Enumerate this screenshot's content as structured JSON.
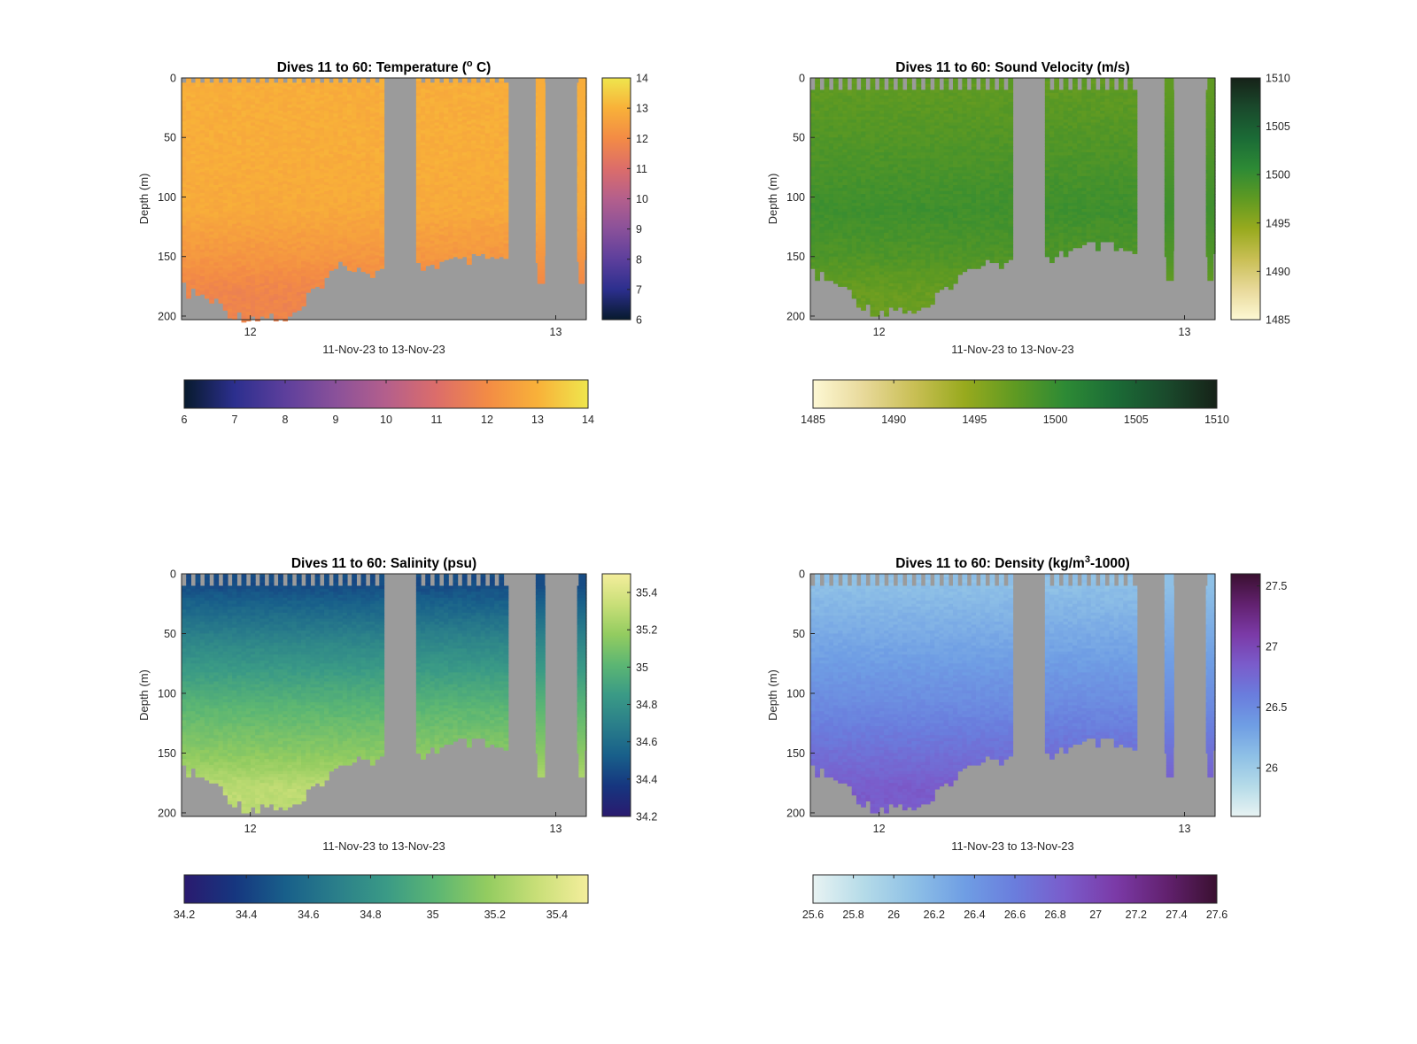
{
  "figure": {
    "background": "#ffffff",
    "mask_color": "#9b9b9b",
    "axis_color": "#262626"
  },
  "chart_data": [
    {
      "type": "heatmap",
      "variable": "temperature",
      "title": "Dives 11 to 60: Temperature (",
      "title_sup": "o",
      "title_end": " C)",
      "xlabel": "11-Nov-23 to 13-Nov-23",
      "ylabel": "Depth (m)",
      "x_ticks": [
        "12",
        "13"
      ],
      "x_tick_values": [
        12,
        13
      ],
      "xlim": [
        11.775,
        13.1
      ],
      "y_ticks": [
        "0",
        "50",
        "100",
        "150",
        "200"
      ],
      "y_tick_values": [
        0,
        50,
        100,
        150,
        200
      ],
      "ylim": [
        0,
        203
      ],
      "y_reversed": true,
      "colormap": [
        "#071a2d",
        "#2c2f8e",
        "#5d3f9c",
        "#8a519a",
        "#b45f8c",
        "#dc6d6a",
        "#f38b45",
        "#f8b139",
        "#efe64d"
      ],
      "clim": [
        6,
        14
      ],
      "colorbar_ticks": [
        "6",
        "7",
        "8",
        "9",
        "10",
        "11",
        "12",
        "13",
        "14"
      ],
      "colorbar_tick_values": [
        6,
        7,
        8,
        9,
        10,
        11,
        12,
        13,
        14
      ],
      "horizontal_colorbar_ticks": [
        "6",
        "7",
        "8",
        "9",
        "10",
        "11",
        "12",
        "13",
        "14"
      ],
      "horizontal_colorbar_tick_values": [
        6,
        7,
        8,
        9,
        10,
        11,
        12,
        13,
        14
      ],
      "profile_gaps": [
        [
          12.44,
          12.55
        ],
        [
          12.84,
          12.94
        ],
        [
          12.965,
          13.075
        ]
      ],
      "extra_profiles": [
        [
          12.94,
          12.965,
          172
        ],
        [
          13.075,
          13.095,
          172
        ]
      ],
      "surface_gap_depth": 4,
      "bottom_depth_profile": [
        [
          11.775,
          172
        ],
        [
          11.8,
          180
        ],
        [
          11.85,
          182
        ],
        [
          11.9,
          190
        ],
        [
          11.95,
          198
        ],
        [
          12.0,
          200
        ],
        [
          12.05,
          198
        ],
        [
          12.1,
          200
        ],
        [
          12.15,
          200
        ],
        [
          12.2,
          180
        ],
        [
          12.25,
          165
        ],
        [
          12.3,
          155
        ],
        [
          12.35,
          158
        ],
        [
          12.4,
          162
        ],
        [
          12.44,
          160
        ],
        [
          12.55,
          157
        ],
        [
          12.6,
          155
        ],
        [
          12.7,
          152
        ],
        [
          12.78,
          150
        ],
        [
          12.835,
          152
        ]
      ],
      "depth_values": [
        10,
        60,
        110,
        150,
        180
      ],
      "depth_value_colors": [
        12.9,
        12.9,
        12.8,
        12.3,
        11.8
      ]
    },
    {
      "type": "heatmap",
      "variable": "sound_velocity",
      "title": "Dives 11 to 60: Sound Velocity (m/s)",
      "xlabel": "11-Nov-23 to 13-Nov-23",
      "ylabel": "Depth (m)",
      "x_ticks": [
        "12",
        "13"
      ],
      "x_tick_values": [
        12,
        13
      ],
      "xlim": [
        11.775,
        13.1
      ],
      "y_ticks": [
        "0",
        "50",
        "100",
        "150",
        "200"
      ],
      "y_tick_values": [
        0,
        50,
        100,
        150,
        200
      ],
      "ylim": [
        0,
        203
      ],
      "y_reversed": true,
      "colormap": [
        "#fdf8d4",
        "#e8d99a",
        "#c9bf55",
        "#98aa1e",
        "#5f9a22",
        "#2d8a35",
        "#1b6b36",
        "#1a4a2c",
        "#162218"
      ],
      "clim": [
        1485,
        1510
      ],
      "colorbar_ticks": [
        "1485",
        "1490",
        "1495",
        "1500",
        "1505",
        "1510"
      ],
      "colorbar_tick_values": [
        1485,
        1490,
        1495,
        1500,
        1505,
        1510
      ],
      "horizontal_colorbar_ticks": [
        "1485",
        "1490",
        "1495",
        "1500",
        "1505",
        "1510"
      ],
      "horizontal_colorbar_tick_values": [
        1485,
        1490,
        1495,
        1500,
        1505,
        1510
      ],
      "profile_gaps": [
        [
          12.44,
          12.55
        ],
        [
          12.84,
          12.94
        ],
        [
          12.965,
          13.075
        ]
      ],
      "extra_profiles": [
        [
          12.94,
          12.965,
          168
        ],
        [
          13.075,
          13.095,
          170
        ]
      ],
      "surface_gap_depth": 10,
      "bottom_depth_profile": [
        [
          11.775,
          162
        ],
        [
          11.85,
          170
        ],
        [
          11.9,
          178
        ],
        [
          11.95,
          190
        ],
        [
          12.0,
          196
        ],
        [
          12.05,
          192
        ],
        [
          12.1,
          194
        ],
        [
          12.15,
          196
        ],
        [
          12.2,
          180
        ],
        [
          12.25,
          168
        ],
        [
          12.3,
          160
        ],
        [
          12.35,
          150
        ],
        [
          12.4,
          155
        ],
        [
          12.44,
          155
        ],
        [
          12.55,
          152
        ],
        [
          12.6,
          145
        ],
        [
          12.7,
          140
        ],
        [
          12.78,
          142
        ],
        [
          12.835,
          148
        ]
      ],
      "depth_values": [
        10,
        60,
        110,
        150,
        180
      ],
      "depth_value_colors": [
        1497.5,
        1498.5,
        1499.5,
        1498.5,
        1497.0
      ]
    },
    {
      "type": "heatmap",
      "variable": "salinity",
      "title": "Dives 11 to 60: Salinity (psu)",
      "xlabel": "11-Nov-23 to 13-Nov-23",
      "ylabel": "Depth (m)",
      "x_ticks": [
        "12",
        "13"
      ],
      "x_tick_values": [
        12,
        13
      ],
      "xlim": [
        11.775,
        13.1
      ],
      "y_ticks": [
        "0",
        "50",
        "100",
        "150",
        "200"
      ],
      "y_tick_values": [
        0,
        50,
        100,
        150,
        200
      ],
      "ylim": [
        0,
        203
      ],
      "y_reversed": true,
      "colormap": [
        "#2a1a6f",
        "#16367f",
        "#185f8a",
        "#2a7e8a",
        "#3a9a86",
        "#5cb673",
        "#93cc60",
        "#c9df78",
        "#f4ee9c"
      ],
      "clim": [
        34.2,
        35.5
      ],
      "colorbar_ticks": [
        "34.2",
        "34.4",
        "34.6",
        "34.8",
        "35",
        "35.2",
        "35.4"
      ],
      "colorbar_tick_values": [
        34.2,
        34.4,
        34.6,
        34.8,
        35.0,
        35.2,
        35.4
      ],
      "horizontal_colorbar_ticks": [
        "34.2",
        "34.4",
        "34.6",
        "34.8",
        "35",
        "35.2",
        "35.4"
      ],
      "horizontal_colorbar_tick_values": [
        34.2,
        34.4,
        34.6,
        34.8,
        35.0,
        35.2,
        35.4
      ],
      "profile_gaps": [
        [
          12.44,
          12.55
        ],
        [
          12.84,
          12.94
        ],
        [
          12.965,
          13.075
        ]
      ],
      "extra_profiles": [
        [
          12.94,
          12.965,
          168
        ],
        [
          13.075,
          13.095,
          170
        ]
      ],
      "surface_gap_depth": 10,
      "bottom_depth_profile": [
        [
          11.775,
          162
        ],
        [
          11.85,
          170
        ],
        [
          11.9,
          178
        ],
        [
          11.95,
          190
        ],
        [
          12.0,
          196
        ],
        [
          12.05,
          192
        ],
        [
          12.1,
          194
        ],
        [
          12.15,
          196
        ],
        [
          12.2,
          180
        ],
        [
          12.25,
          168
        ],
        [
          12.3,
          160
        ],
        [
          12.35,
          150
        ],
        [
          12.4,
          155
        ],
        [
          12.44,
          155
        ],
        [
          12.55,
          152
        ],
        [
          12.6,
          145
        ],
        [
          12.7,
          140
        ],
        [
          12.78,
          142
        ],
        [
          12.835,
          148
        ]
      ],
      "depth_values": [
        10,
        60,
        110,
        150,
        180
      ],
      "depth_value_colors": [
        34.45,
        34.75,
        35.0,
        35.15,
        35.3
      ]
    },
    {
      "type": "heatmap",
      "variable": "density",
      "title": "Dives 11 to 60: Density (kg/m",
      "title_sup": "3",
      "title_end": "-1000)",
      "xlabel": "11-Nov-23 to 13-Nov-23",
      "ylabel": "Depth (m)",
      "x_ticks": [
        "12",
        "13"
      ],
      "x_tick_values": [
        12,
        13
      ],
      "xlim": [
        11.775,
        13.1
      ],
      "y_ticks": [
        "0",
        "50",
        "100",
        "150",
        "200"
      ],
      "y_tick_values": [
        0,
        50,
        100,
        150,
        200
      ],
      "ylim": [
        0,
        203
      ],
      "y_reversed": true,
      "colormap": [
        "#e8f3f3",
        "#b5dbe8",
        "#8ec0e6",
        "#6f9ee4",
        "#6a7ddd",
        "#7a5ccb",
        "#7b3aa7",
        "#62216f",
        "#3a1030"
      ],
      "clim": [
        25.6,
        27.6
      ],
      "colorbar_ticks": [
        "26",
        "26.5",
        "27",
        "27.5"
      ],
      "colorbar_tick_values": [
        26.0,
        26.5,
        27.0,
        27.5
      ],
      "horizontal_colorbar_ticks": [
        "25.6",
        "25.8",
        "26",
        "26.2",
        "26.4",
        "26.6",
        "26.8",
        "27",
        "27.2",
        "27.4",
        "27.6"
      ],
      "horizontal_colorbar_tick_values": [
        25.6,
        25.8,
        26.0,
        26.2,
        26.4,
        26.6,
        26.8,
        27.0,
        27.2,
        27.4,
        27.6
      ],
      "profile_gaps": [
        [
          12.44,
          12.55
        ],
        [
          12.84,
          12.94
        ],
        [
          12.965,
          13.075
        ]
      ],
      "extra_profiles": [
        [
          12.94,
          12.965,
          168
        ],
        [
          13.075,
          13.095,
          170
        ]
      ],
      "surface_gap_depth": 10,
      "bottom_depth_profile": [
        [
          11.775,
          162
        ],
        [
          11.85,
          170
        ],
        [
          11.9,
          178
        ],
        [
          11.95,
          190
        ],
        [
          12.0,
          196
        ],
        [
          12.05,
          192
        ],
        [
          12.1,
          194
        ],
        [
          12.15,
          196
        ],
        [
          12.2,
          180
        ],
        [
          12.25,
          168
        ],
        [
          12.3,
          160
        ],
        [
          12.35,
          150
        ],
        [
          12.4,
          155
        ],
        [
          12.44,
          155
        ],
        [
          12.55,
          152
        ],
        [
          12.6,
          145
        ],
        [
          12.7,
          140
        ],
        [
          12.78,
          142
        ],
        [
          12.835,
          148
        ]
      ],
      "depth_values": [
        10,
        60,
        110,
        150,
        180
      ],
      "depth_value_colors": [
        26.1,
        26.3,
        26.5,
        26.7,
        26.85
      ]
    }
  ]
}
